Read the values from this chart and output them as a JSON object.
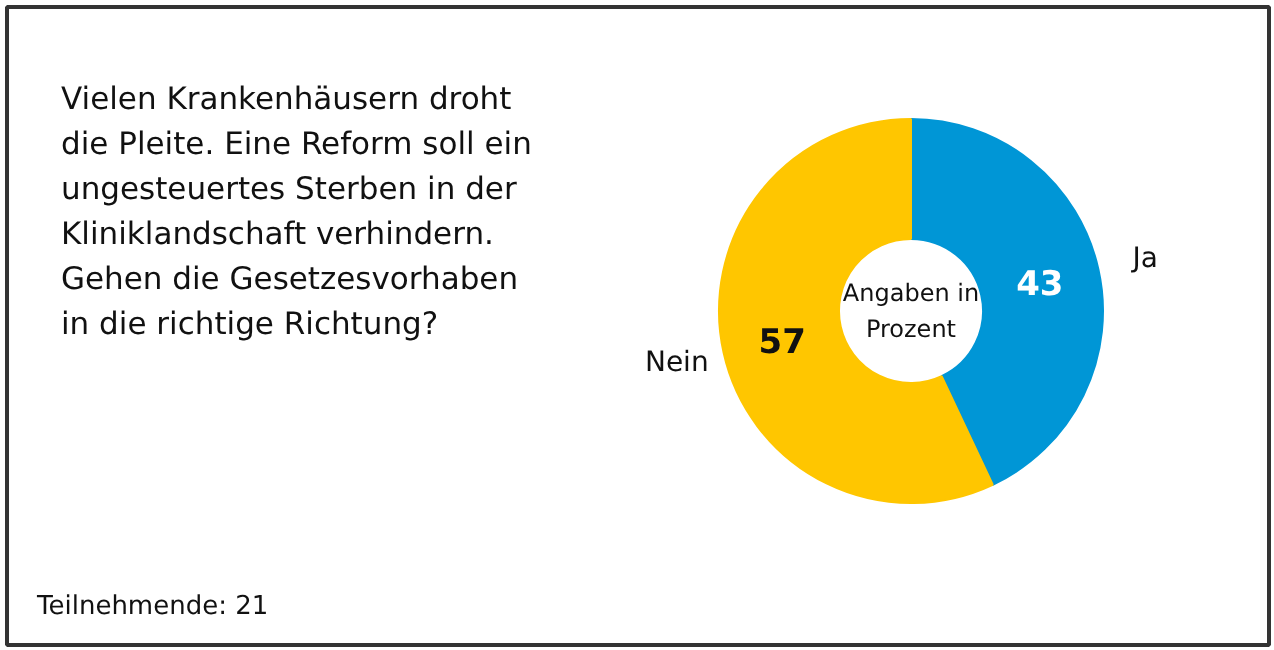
{
  "chart_data": {
    "type": "donut",
    "title": "Vielen Krankenhäusern droht\ndie Pleite. Eine Reform soll ein\nungesteuertes Sterben in der\nKliniklandschaft verhindern.\nGehen die Gesetzesvorhaben\nin die richtige Richtung?",
    "categories": [
      "Ja",
      "Nein"
    ],
    "values": [
      43,
      57
    ],
    "colors": [
      "#0096d6",
      "#ffc600"
    ],
    "data_labels": true,
    "legend": false,
    "annotations": [
      "Angaben in\nProzent",
      "Teilnehmende: 21"
    ]
  }
}
